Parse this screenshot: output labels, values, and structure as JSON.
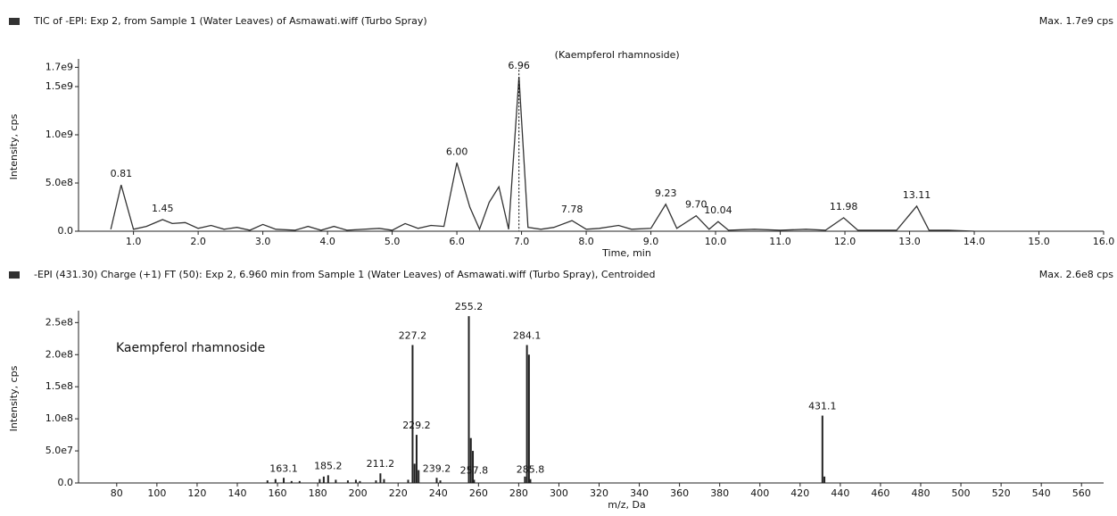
{
  "chart_data": [
    {
      "type": "line",
      "title": "TIC of -EPI: Exp 2, from Sample 1 (Water Leaves) of Asmawati.wiff (Turbo Spray)",
      "max_label": "Max. 1.7e9 cps",
      "x_label": "Time, min",
      "y_label": "Intensity, cps",
      "annotation": "(Kaempferol rhamnoside)",
      "color": "#333333",
      "x": [
        0.65,
        0.81,
        1.0,
        1.2,
        1.45,
        1.6,
        1.8,
        2.0,
        2.2,
        2.4,
        2.6,
        2.8,
        3.0,
        3.2,
        3.5,
        3.7,
        3.9,
        4.1,
        4.3,
        4.8,
        5.0,
        5.2,
        5.4,
        5.6,
        5.8,
        6.0,
        6.2,
        6.35,
        6.5,
        6.65,
        6.8,
        6.96,
        7.1,
        7.3,
        7.5,
        7.78,
        8.0,
        8.2,
        8.5,
        8.7,
        9.0,
        9.23,
        9.4,
        9.7,
        9.9,
        10.04,
        10.2,
        10.6,
        11.0,
        11.4,
        11.7,
        11.98,
        12.2,
        12.8,
        13.11,
        13.3,
        13.6,
        14.0
      ],
      "values": [
        20000000,
        480000000,
        20000000,
        50000000,
        120000000,
        80000000,
        90000000,
        30000000,
        60000000,
        20000000,
        40000000,
        10000000,
        70000000,
        20000000,
        10000000,
        50000000,
        10000000,
        50000000,
        10000000,
        30000000,
        10000000,
        80000000,
        30000000,
        60000000,
        50000000,
        710000000,
        250000000,
        20000000,
        300000000,
        460000000,
        20000000,
        1600000000,
        40000000,
        20000000,
        40000000,
        110000000,
        20000000,
        30000000,
        60000000,
        20000000,
        30000000,
        280000000,
        30000000,
        160000000,
        20000000,
        100000000,
        10000000,
        20000000,
        10000000,
        20000000,
        10000000,
        140000000,
        10000000,
        10000000,
        260000000,
        10000000,
        10000000,
        0
      ],
      "peaks": [
        0.81,
        1.45,
        6.0,
        6.96,
        7.78,
        9.23,
        9.7,
        10.04,
        11.98,
        13.11
      ],
      "peak_labels": [
        "0.81",
        "1.45",
        "6.00",
        "6.96",
        "7.78",
        "9.23",
        "9.70",
        "10.04",
        "11.98",
        "13.11"
      ],
      "xlim": [
        0.15,
        16.0
      ],
      "xticks": [
        {
          "value": 1,
          "label": "1.0"
        },
        {
          "value": 2,
          "label": "2.0"
        },
        {
          "value": 3,
          "label": "3.0"
        },
        {
          "value": 4,
          "label": "4.0"
        },
        {
          "value": 5,
          "label": "5.0"
        },
        {
          "value": 6,
          "label": "6.0"
        },
        {
          "value": 7,
          "label": "7.0"
        },
        {
          "value": 8,
          "label": "8.0"
        },
        {
          "value": 9,
          "label": "9.0"
        },
        {
          "value": 10,
          "label": "10.0"
        },
        {
          "value": 11,
          "label": "11.0"
        },
        {
          "value": 12,
          "label": "12.0"
        },
        {
          "value": 13,
          "label": "13.0"
        },
        {
          "value": 14,
          "label": "14.0"
        },
        {
          "value": 15,
          "label": "15.0"
        },
        {
          "value": 16,
          "label": "16.0"
        }
      ],
      "ylim": [
        0,
        1750000000
      ],
      "yticks": [
        {
          "value": 0,
          "label": "0.0"
        },
        {
          "value": 500000000,
          "label": "5.0e8"
        },
        {
          "value": 1000000000,
          "label": "1.0e9"
        },
        {
          "value": 1500000000,
          "label": "1.5e9"
        },
        {
          "value": 1700000000,
          "label": "1.7e9"
        }
      ]
    },
    {
      "type": "stick",
      "title": "-EPI (431.30) Charge (+1) FT (50): Exp 2, 6.960 min from Sample 1 (Water Leaves) of Asmawati.wiff (Turbo Spray), Centroided",
      "max_label": "Max. 2.6e8 cps",
      "x_label": "m/z, Da",
      "y_label": "Intensity, cps",
      "annotation": "Kaempferol rhamnoside",
      "color": "#222222",
      "x": [
        155,
        159,
        163.1,
        167,
        171,
        181,
        183,
        185.2,
        189,
        195,
        199,
        201,
        209,
        211.2,
        213,
        225,
        227.2,
        228.2,
        229.2,
        230.2,
        239.2,
        241,
        255.2,
        256.2,
        257.2,
        257.8,
        283.1,
        284.1,
        285.1,
        285.8,
        431.1,
        432.1
      ],
      "values": [
        4000000,
        6000000,
        8000000,
        3000000,
        3000000,
        6000000,
        10000000,
        12000000,
        5000000,
        4000000,
        5000000,
        3000000,
        4000000,
        15000000,
        6000000,
        5000000,
        215000000,
        30000000,
        75000000,
        20000000,
        8000000,
        4000000,
        260000000,
        70000000,
        50000000,
        5000000,
        10000000,
        215000000,
        200000000,
        6000000,
        105000000,
        10000000
      ],
      "peaks": [
        163.1,
        185.2,
        211.2,
        227.2,
        229.2,
        239.2,
        255.2,
        257.8,
        284.1,
        285.8,
        431.1
      ],
      "xlim": [
        61,
        571
      ],
      "xticks": [
        80,
        100,
        120,
        140,
        160,
        180,
        200,
        220,
        240,
        260,
        280,
        300,
        320,
        340,
        360,
        380,
        400,
        420,
        440,
        460,
        480,
        500,
        520,
        540,
        560
      ],
      "ylim": [
        0,
        263000000
      ],
      "yticks": [
        {
          "value": 0,
          "label": "0.0"
        },
        {
          "value": 50000000,
          "label": "5.0e7"
        },
        {
          "value": 100000000,
          "label": "1.0e8"
        },
        {
          "value": 150000000,
          "label": "1.5e8"
        },
        {
          "value": 200000000,
          "label": "2.0e8"
        },
        {
          "value": 250000000,
          "label": "2.5e8"
        }
      ]
    }
  ]
}
